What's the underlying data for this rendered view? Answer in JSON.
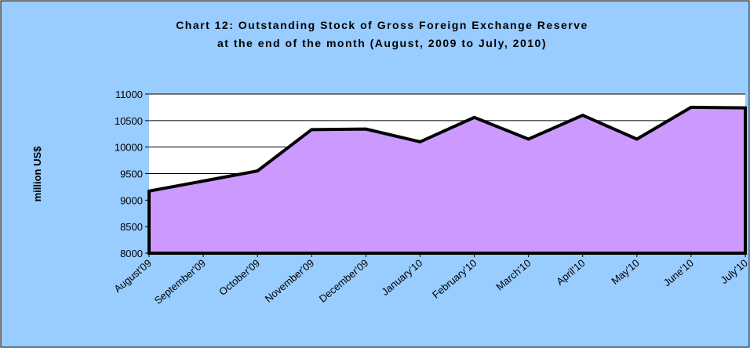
{
  "chart_data": {
    "type": "area",
    "title": [
      "Chart 12: Outstanding Stock of Gross Foreign Exchange Reserve",
      "at the end of the month (August, 2009 to July, 2010)"
    ],
    "y_label": "million US$",
    "categories": [
      "August'09",
      "September'09",
      "October'09",
      "November'09",
      "December'09",
      "January'10",
      "February'10",
      "March'10",
      "April'10",
      "May'10",
      "June'10",
      "July'10"
    ],
    "values": [
      9170,
      9360,
      9550,
      10330,
      10340,
      10100,
      10560,
      10150,
      10600,
      10150,
      10750,
      10740
    ],
    "color": "#cc99ff",
    "ylim": [
      8000,
      11000
    ],
    "yticks": [
      8000,
      8500,
      9000,
      9500,
      10000,
      10500,
      11000
    ],
    "grid": true
  }
}
